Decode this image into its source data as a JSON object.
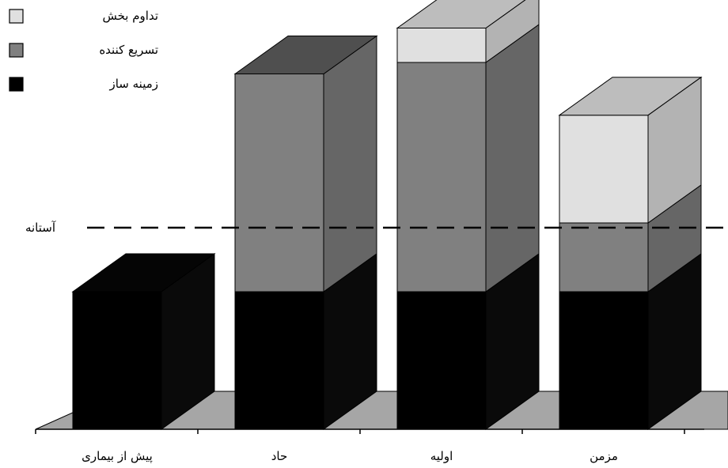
{
  "chart_data": {
    "type": "bar",
    "stacked": true,
    "style": "3d",
    "categories": [
      "پیش از بیماری",
      "حاد",
      "اولیه",
      "مزمن"
    ],
    "series": [
      {
        "name": "زمینه ساز",
        "values": [
          3.0,
          3.0,
          3.0,
          3.0
        ],
        "color": "#000000"
      },
      {
        "name": "تسریع کننده",
        "values": [
          0,
          4.75,
          5.0,
          1.5
        ],
        "color": "#808080"
      },
      {
        "name": "تداوم بخش",
        "values": [
          0,
          0,
          0.75,
          2.35
        ],
        "color": "#e0e0e0"
      }
    ],
    "threshold": {
      "label": "آستانه",
      "value": 4.5
    },
    "legend_position": "top-left",
    "ylim": [
      0,
      9
    ],
    "grid": false
  }
}
